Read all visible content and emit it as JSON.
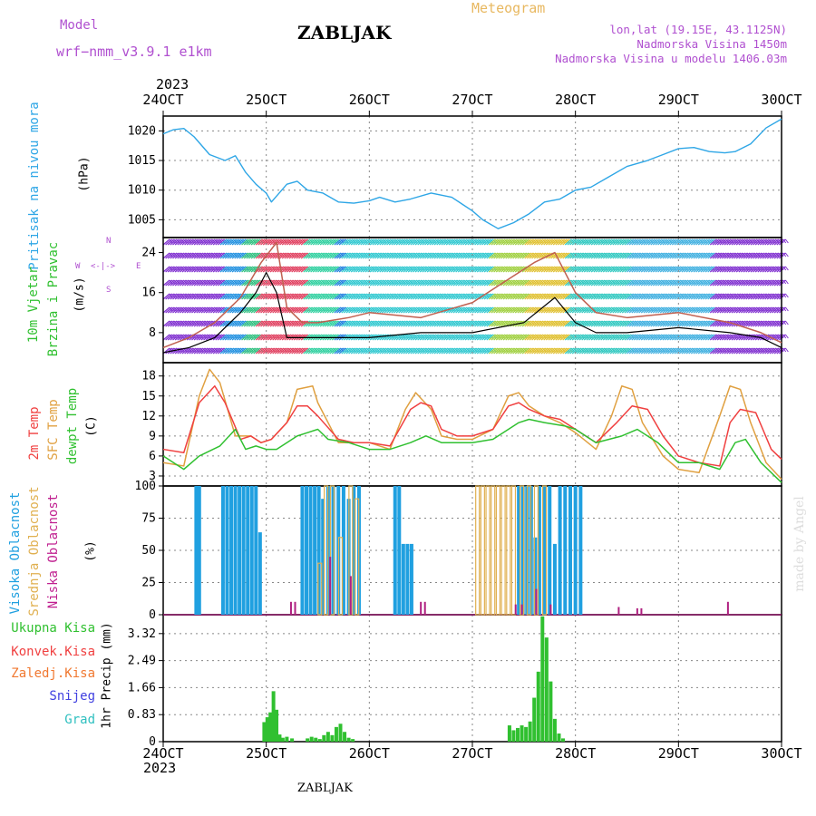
{
  "header": {
    "model_label": "Model",
    "model_name": "wrf−nmm_v3.9.1  e1km",
    "station": "ZABLJAK",
    "meteogram": "Meteogram",
    "lonlat": "lon,lat (19.15E, 43.1125N)",
    "altitude": "Nadmorska Visina 1450m",
    "model_altitude": "Nadmorska Visina u modelu 1406.03m",
    "year_top": "2023",
    "year_bottom": "2023",
    "footer_station": "ZABLJAK",
    "credit": "made by Angel"
  },
  "colors": {
    "pressure": "#2ea6e6",
    "temp2m": "#f04040",
    "sfc": "#e0a040",
    "dewpt": "#30c030",
    "cloud_high": "#20a0e0",
    "cloud_mid": "#e0b050",
    "cloud_low": "#b02080",
    "precip": "#30c030",
    "wind_avg": "#000000",
    "wind_gust": "#c06050",
    "header_purple": "#b050d0",
    "header_orange": "#e8b860"
  },
  "chart_data": [
    {
      "type": "line",
      "panel": "pressure",
      "ylabel_outer": "Pritisak na nivou mora",
      "ylabel_inner": "(hPa)",
      "ylim": [
        1002,
        1022.5
      ],
      "yticks": [
        "1005",
        "1010",
        "1015",
        "1020"
      ],
      "xticks": [
        "24OCT",
        "25OCT",
        "26OCT",
        "27OCT",
        "28OCT",
        "29OCT",
        "30OCT"
      ],
      "series": [
        {
          "x": [
            0,
            0.1,
            0.2,
            0.3,
            0.45,
            0.6,
            0.7,
            0.8,
            0.9,
            1.0,
            1.05,
            1.2,
            1.3,
            1.4,
            1.55,
            1.7,
            1.85,
            2.0,
            2.1,
            2.25,
            2.4,
            2.6,
            2.8,
            3.0,
            3.1,
            3.25,
            3.4,
            3.55,
            3.7,
            3.85,
            4.0,
            4.15,
            4.3,
            4.5,
            4.7,
            4.85,
            5.0,
            5.15,
            5.3,
            5.45,
            5.55,
            5.7,
            5.85,
            6.0
          ],
          "y": [
            1019.5,
            1020.2,
            1020.4,
            1019.0,
            1016.0,
            1015.0,
            1015.8,
            1013.0,
            1011.0,
            1009.5,
            1008.0,
            1011.0,
            1011.5,
            1010.0,
            1009.5,
            1008.0,
            1007.8,
            1008.2,
            1008.8,
            1008.0,
            1008.5,
            1009.5,
            1008.8,
            1006.5,
            1005.0,
            1003.5,
            1004.5,
            1006.0,
            1008.0,
            1008.5,
            1010.0,
            1010.5,
            1012.0,
            1014.0,
            1015.0,
            1016.0,
            1017.0,
            1017.2,
            1016.5,
            1016.3,
            1016.5,
            1017.8,
            1020.5,
            1022.0
          ]
        }
      ]
    },
    {
      "type": "line",
      "panel": "wind",
      "ylabel_outer_1": "10m Vjetar",
      "ylabel_outer_2": "Brzina i Pravac",
      "ylabel_inner": "(m/s)",
      "compass": [
        "N",
        "W",
        "E",
        "S"
      ],
      "ylim": [
        2,
        27
      ],
      "yticks": [
        "8",
        "16",
        "24"
      ],
      "series": [
        {
          "name": "avg",
          "x": [
            0,
            0.25,
            0.5,
            0.75,
            0.9,
            1.0,
            1.1,
            1.2,
            1.4,
            1.7,
            2.0,
            2.5,
            3.0,
            3.5,
            3.8,
            4.0,
            4.2,
            4.5,
            5.0,
            5.5,
            5.8,
            6.0
          ],
          "y": [
            4,
            5,
            7,
            12,
            16,
            20,
            16,
            7,
            7,
            7,
            7,
            8,
            8,
            10,
            15,
            10,
            8,
            8,
            9,
            8,
            7,
            5
          ]
        },
        {
          "name": "gust",
          "x": [
            0,
            0.25,
            0.5,
            0.75,
            0.95,
            1.1,
            1.2,
            1.35,
            1.5,
            1.8,
            2.0,
            2.5,
            3.0,
            3.3,
            3.6,
            3.8,
            4.0,
            4.2,
            4.5,
            5.0,
            5.5,
            5.8,
            6.0
          ],
          "y": [
            5,
            7,
            10,
            15,
            22,
            26,
            13,
            10,
            10,
            11,
            12,
            11,
            14,
            18,
            22,
            24,
            16,
            12,
            11,
            12,
            10,
            8,
            6
          ]
        }
      ]
    },
    {
      "type": "line",
      "panel": "temperature",
      "ylabel_1": "2m Temp",
      "ylabel_2": "SFC Temp",
      "ylabel_3": "dewpt Temp",
      "ylabel_inner": "(C)",
      "ylim": [
        1.5,
        20
      ],
      "yticks": [
        "3",
        "6",
        "9",
        "12",
        "15",
        "18"
      ],
      "series": [
        {
          "name": "2m",
          "x": [
            0,
            0.2,
            0.35,
            0.5,
            0.6,
            0.75,
            0.85,
            0.95,
            1.05,
            1.2,
            1.3,
            1.4,
            1.5,
            1.7,
            1.85,
            2.0,
            2.2,
            2.4,
            2.5,
            2.6,
            2.7,
            2.85,
            3.0,
            3.2,
            3.35,
            3.45,
            3.55,
            3.7,
            3.85,
            4.0,
            4.2,
            4.4,
            4.55,
            4.7,
            4.85,
            5.0,
            5.2,
            5.4,
            5.5,
            5.6,
            5.75,
            5.9,
            6.0
          ],
          "y": [
            7,
            6.5,
            14,
            16.5,
            14,
            8.5,
            9,
            8,
            8.5,
            11,
            13.5,
            13.5,
            12,
            8.5,
            8,
            8,
            7.5,
            13,
            14,
            13.5,
            10,
            9,
            9,
            10,
            13.5,
            14,
            13,
            12,
            11.5,
            10,
            8,
            11,
            13.5,
            13,
            9,
            6,
            5,
            4.5,
            11,
            13,
            12.5,
            7,
            5.5
          ]
        },
        {
          "name": "sfc",
          "x": [
            0,
            0.2,
            0.35,
            0.45,
            0.55,
            0.7,
            0.85,
            0.95,
            1.05,
            1.2,
            1.3,
            1.45,
            1.5,
            1.7,
            1.85,
            2.0,
            2.2,
            2.35,
            2.45,
            2.6,
            2.7,
            2.85,
            3.0,
            3.2,
            3.35,
            3.45,
            3.55,
            3.7,
            3.85,
            4.0,
            4.2,
            4.35,
            4.45,
            4.55,
            4.65,
            4.85,
            5.0,
            5.2,
            5.4,
            5.5,
            5.6,
            5.7,
            5.85,
            6.0
          ],
          "y": [
            5,
            4.5,
            15,
            19,
            17,
            9,
            9,
            8,
            8.5,
            11,
            16,
            16.5,
            14,
            8,
            8,
            8,
            7,
            13,
            15.5,
            13,
            9,
            8.5,
            8.5,
            10,
            15,
            15.5,
            13.5,
            12,
            11,
            9.5,
            7,
            12,
            16.5,
            16,
            11,
            6,
            4,
            3.5,
            12,
            16.5,
            16,
            11,
            5,
            2.5
          ]
        },
        {
          "name": "dewpt",
          "x": [
            0,
            0.2,
            0.35,
            0.55,
            0.7,
            0.8,
            0.9,
            1.0,
            1.1,
            1.3,
            1.4,
            1.5,
            1.6,
            1.8,
            2.0,
            2.2,
            2.4,
            2.55,
            2.7,
            2.9,
            3.0,
            3.2,
            3.45,
            3.55,
            3.7,
            3.9,
            4.0,
            4.2,
            4.45,
            4.6,
            4.8,
            5.0,
            5.2,
            5.4,
            5.55,
            5.65,
            5.8,
            6.0
          ],
          "y": [
            6,
            4,
            6,
            7.5,
            10,
            7,
            7.5,
            7,
            7,
            9,
            9.5,
            10,
            8.5,
            8,
            7,
            7,
            8,
            9,
            8,
            8,
            8,
            8.5,
            11,
            11.5,
            11,
            10.5,
            10,
            8,
            9,
            10,
            8,
            5,
            5,
            4,
            8,
            8.5,
            5,
            2
          ]
        }
      ]
    },
    {
      "type": "bar",
      "panel": "cloud",
      "ylabel_1": "Visoka Oblacnost",
      "ylabel_2": "Srednja Oblacnost",
      "ylabel_3": "Niska Oblacnost",
      "ylabel_inner": "(%)",
      "ylim": [
        0,
        100
      ],
      "yticks": [
        "0",
        "25",
        "50",
        "75",
        "100"
      ],
      "series": [
        {
          "name": "Visoka Oblacnost",
          "x": [
            0.32,
            0.35,
            0.58,
            0.62,
            0.66,
            0.7,
            0.74,
            0.78,
            0.82,
            0.86,
            0.9,
            0.94,
            1.35,
            1.39,
            1.43,
            1.47,
            1.51,
            1.55,
            1.6,
            1.65,
            1.7,
            1.75,
            1.8,
            1.85,
            1.9,
            2.25,
            2.29,
            2.33,
            2.37,
            2.41,
            3.45,
            3.49,
            3.53,
            3.57,
            3.61,
            3.65,
            3.7,
            3.75,
            3.8,
            3.85,
            3.9,
            3.95,
            4.0,
            4.05
          ],
          "y": [
            100,
            100,
            100,
            100,
            100,
            100,
            100,
            100,
            100,
            100,
            100,
            64,
            100,
            100,
            100,
            100,
            100,
            90,
            100,
            100,
            100,
            100,
            90,
            100,
            100,
            100,
            100,
            55,
            55,
            55,
            100,
            100,
            100,
            100,
            60,
            100,
            100,
            100,
            55,
            100,
            100,
            100,
            100,
            100
          ]
        },
        {
          "name": "Srednja Oblacnost",
          "x": [
            1.52,
            1.58,
            1.64,
            1.72,
            1.82,
            1.88,
            3.05,
            3.1,
            3.15,
            3.2,
            3.25,
            3.3,
            3.35,
            3.4,
            3.48,
            3.55,
            3.62,
            3.7
          ],
          "y": [
            40,
            100,
            100,
            60,
            100,
            90,
            100,
            100,
            100,
            100,
            100,
            100,
            100,
            100,
            100,
            100,
            100,
            100
          ]
        },
        {
          "name": "Niska Oblacnost",
          "x": [
            1.24,
            1.28,
            1.62,
            1.82,
            2.5,
            2.54,
            3.42,
            3.48,
            3.62,
            3.76,
            4.42,
            4.6,
            4.64,
            5.48
          ],
          "y": [
            10,
            10,
            45,
            30,
            10,
            10,
            8,
            8,
            20,
            8,
            6,
            5,
            5,
            10
          ]
        }
      ]
    },
    {
      "type": "bar",
      "panel": "precip",
      "ylabel_inner": "1hr Precip (mm)",
      "legend": [
        "Ukupna Kisa",
        "Konvek.Kisa",
        "Zaledj.Kisa",
        "Snijeg",
        "Grad"
      ],
      "ylim": [
        0,
        3.9
      ],
      "yticks": [
        "0",
        "0.83",
        "1.66",
        "2.49",
        "3.32"
      ],
      "xticks": [
        "24OCT",
        "25OCT",
        "26OCT",
        "27OCT",
        "28OCT",
        "29OCT",
        "30OCT"
      ],
      "series": [
        {
          "name": "Ukupna Kisa",
          "x": [
            0.98,
            1.01,
            1.04,
            1.07,
            1.1,
            1.13,
            1.16,
            1.2,
            1.25,
            1.4,
            1.44,
            1.48,
            1.52,
            1.56,
            1.6,
            1.64,
            1.68,
            1.72,
            1.76,
            1.8,
            1.84,
            3.36,
            3.4,
            3.44,
            3.48,
            3.52,
            3.56,
            3.6,
            3.64,
            3.68,
            3.72,
            3.76,
            3.8,
            3.84,
            3.88
          ],
          "y": [
            0.6,
            0.75,
            0.9,
            1.55,
            0.98,
            0.22,
            0.12,
            0.15,
            0.1,
            0.1,
            0.15,
            0.12,
            0.08,
            0.2,
            0.3,
            0.2,
            0.45,
            0.55,
            0.3,
            0.12,
            0.08,
            0.5,
            0.35,
            0.42,
            0.5,
            0.45,
            0.62,
            1.35,
            2.15,
            3.85,
            3.2,
            1.85,
            0.7,
            0.25,
            0.1
          ]
        }
      ]
    }
  ]
}
